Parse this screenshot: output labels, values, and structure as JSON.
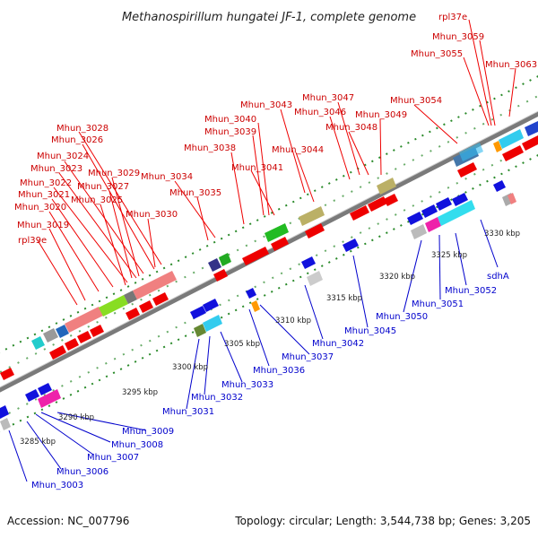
{
  "title": "Methanospirillum hungatei JF-1, complete genome",
  "footer": {
    "accession": "Accession: NC_007796",
    "topology": "Topology: circular; Length: 3,544,738 bp; Genes: 3,205"
  },
  "colors": {
    "forward_label": "#cc0000",
    "reverse_label": "#0000cc",
    "forward_gene": "#ee0000",
    "reverse_gene": "#1111dd",
    "backbone": "#9a9a9a",
    "dots": "#2a8a2a"
  },
  "scale_ticks": [
    "3285 kbp",
    "3290 kbp",
    "3295 kbp",
    "3300 kbp",
    "3305 kbp",
    "3310 kbp",
    "3315 kbp",
    "3320 kbp",
    "3325 kbp",
    "3330 kbp"
  ],
  "forward_labels": [
    "rpl37e",
    "Mhun_3059",
    "Mhun_3055",
    "Mhun_3063",
    "Mhun_3047",
    "Mhun_3043",
    "Mhun_3046",
    "Mhun_3054",
    "Mhun_3049",
    "Mhun_3040",
    "Mhun_3048",
    "Mhun_3039",
    "Mhun_3028",
    "Mhun_3026",
    "Mhun_3038",
    "Mhun_3044",
    "Mhun_3024",
    "Mhun_3041",
    "Mhun_3023",
    "Mhun_3029",
    "Mhun_3034",
    "Mhun_3022",
    "Mhun_3027",
    "Mhun_3021",
    "Mhun_3035",
    "Mhun_3025",
    "Mhun_3020",
    "Mhun_3030",
    "Mhun_3019",
    "rpl39e"
  ],
  "reverse_labels": [
    "sdhA",
    "Mhun_3052",
    "Mhun_3051",
    "Mhun_3050",
    "Mhun_3045",
    "Mhun_3042",
    "Mhun_3037",
    "Mhun_3036",
    "Mhun_3033",
    "Mhun_3032",
    "Mhun_3031",
    "Mhun_3009",
    "Mhun_3008",
    "Mhun_3007",
    "Mhun_3006",
    "Mhun_3003"
  ]
}
